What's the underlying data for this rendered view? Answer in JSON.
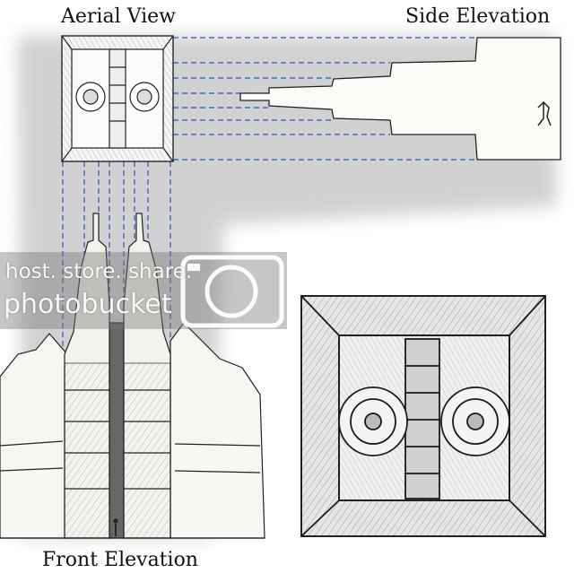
{
  "labels": {
    "aerial_view": "Aerial View",
    "side_elevation": "Side Elevation",
    "front_elevation": "Front Elevation"
  },
  "watermark": {
    "line1": "host. store. share.",
    "line2": "photobucket",
    "icon": "camera-icon"
  },
  "colors": {
    "projection_lines": "#2f55b5",
    "ink": "#222222",
    "shadow": "#bdbdbd"
  }
}
